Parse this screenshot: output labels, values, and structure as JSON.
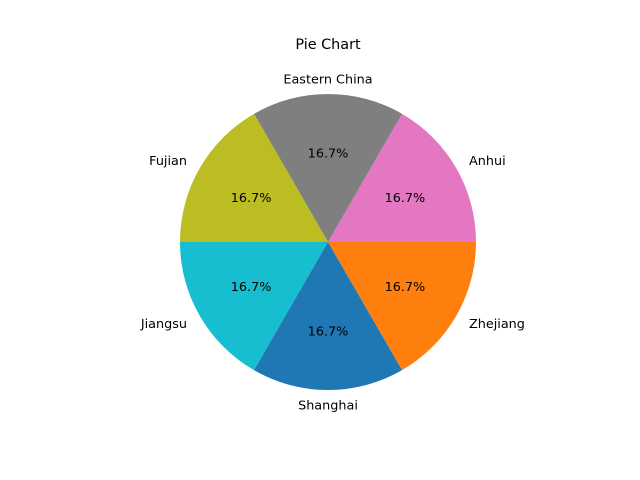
{
  "chart_data": {
    "type": "pie",
    "title": "Pie Chart",
    "categories": [
      "Zhejiang",
      "Anhui",
      "Eastern China",
      "Fujian",
      "Jiangsu",
      "Shanghai"
    ],
    "values": [
      1,
      1,
      1,
      1,
      1,
      1
    ],
    "percent_labels": [
      "16.7%",
      "16.7%",
      "16.7%",
      "16.7%",
      "16.7%",
      "16.7%"
    ],
    "colors": [
      "#ff7f0e",
      "#e377c2",
      "#7f7f7f",
      "#bcbd22",
      "#17becf",
      "#1f77b4"
    ],
    "legend": "none"
  }
}
